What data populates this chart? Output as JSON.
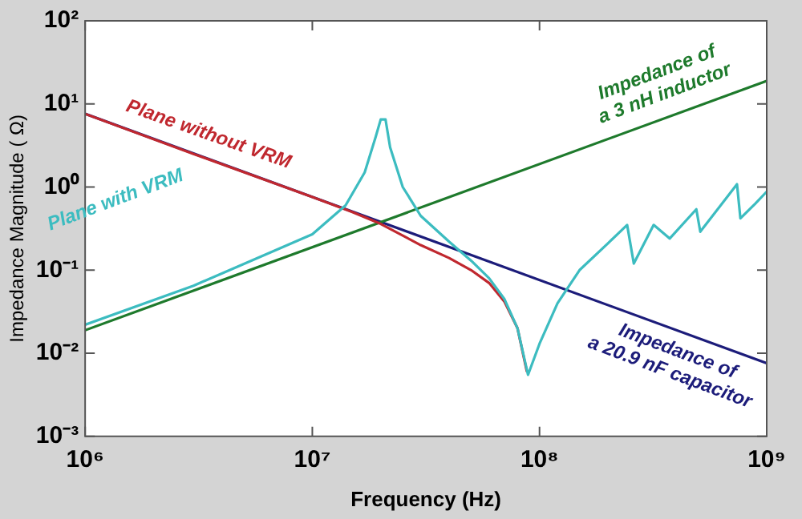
{
  "chart_data": {
    "type": "line",
    "xlabel": "Frequency (Hz)",
    "ylabel": "Impedance Magnitude ( Ω)",
    "log": "xy",
    "grid": false,
    "legend": false,
    "marker": "none",
    "line_style": "solid",
    "xlim": [
      1000000,
      1000000000
    ],
    "ylim": [
      0.001,
      100
    ],
    "xticks": [
      {
        "value": 1000000,
        "label": "10⁶"
      },
      {
        "value": 10000000,
        "label": "10⁷"
      },
      {
        "value": 100000000,
        "label": "10⁸"
      },
      {
        "value": 1000000000,
        "label": "10⁹"
      }
    ],
    "yticks": [
      {
        "value": 0.001,
        "label": "10⁻³"
      },
      {
        "value": 0.01,
        "label": "10⁻²"
      },
      {
        "value": 0.1,
        "label": "10⁻¹"
      },
      {
        "value": 1,
        "label": "10⁰"
      },
      {
        "value": 10,
        "label": "10¹"
      },
      {
        "value": 100,
        "label": "10²"
      }
    ],
    "series": [
      {
        "name": "Impedance of a 20.9 nF capacitor",
        "color": "#1c1c7a",
        "x": [
          1000000,
          1000000000
        ],
        "values": [
          7.6,
          0.0076
        ]
      },
      {
        "name": "Impedance of a 3 nH inductor",
        "color": "#1e7a2c",
        "x": [
          1000000,
          1000000000
        ],
        "values": [
          0.0189,
          18.9
        ]
      },
      {
        "name": "Plane without VRM",
        "color": "#c0282f",
        "x": [
          1000000,
          3000000,
          10000000,
          15000000,
          20000000,
          30000000,
          40000000,
          50000000,
          60000000,
          70000000,
          80000000,
          88000000
        ],
        "values": [
          7.6,
          2.5,
          0.76,
          0.5,
          0.36,
          0.2,
          0.14,
          0.1,
          0.07,
          0.042,
          0.02,
          0.006
        ]
      },
      {
        "name": "Plane with VRM",
        "color": "#3cbcc0",
        "x": [
          1000000,
          3000000,
          10000000,
          14000000,
          17000000,
          19000000,
          20000000,
          21000000,
          22000000,
          25000000,
          30000000,
          40000000,
          50000000,
          60000000,
          70000000,
          80000000,
          89000000,
          100000000,
          120000000,
          150000000,
          200000000,
          243000000,
          260000000,
          318000000,
          374000000,
          490000000,
          510000000,
          740000000,
          766000000,
          890000000,
          1000000000
        ],
        "values": [
          0.022,
          0.065,
          0.27,
          0.6,
          1.5,
          4,
          6.5,
          6.5,
          3,
          1,
          0.45,
          0.22,
          0.13,
          0.08,
          0.045,
          0.02,
          0.0055,
          0.013,
          0.04,
          0.1,
          0.21,
          0.35,
          0.12,
          0.35,
          0.24,
          0.54,
          0.29,
          1.08,
          0.42,
          0.63,
          0.88
        ]
      }
    ]
  }
}
